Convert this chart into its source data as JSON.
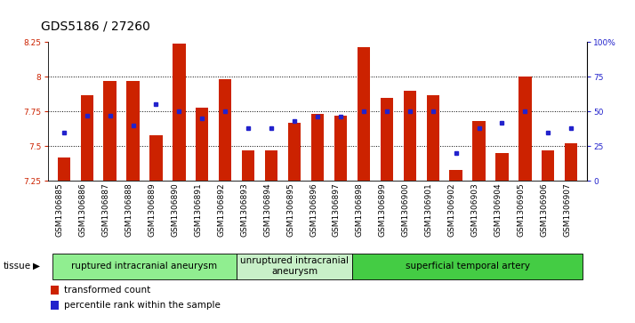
{
  "title": "GDS5186 / 27260",
  "samples": [
    "GSM1306885",
    "GSM1306886",
    "GSM1306887",
    "GSM1306888",
    "GSM1306889",
    "GSM1306890",
    "GSM1306891",
    "GSM1306892",
    "GSM1306893",
    "GSM1306894",
    "GSM1306895",
    "GSM1306896",
    "GSM1306897",
    "GSM1306898",
    "GSM1306899",
    "GSM1306900",
    "GSM1306901",
    "GSM1306902",
    "GSM1306903",
    "GSM1306904",
    "GSM1306905",
    "GSM1306906",
    "GSM1306907"
  ],
  "bar_values": [
    7.42,
    7.87,
    7.97,
    7.97,
    7.58,
    8.24,
    7.78,
    7.98,
    7.47,
    7.47,
    7.67,
    7.73,
    7.72,
    8.21,
    7.85,
    7.9,
    7.87,
    7.33,
    7.68,
    7.45,
    8.0,
    7.47,
    7.52
  ],
  "percentile_values": [
    35,
    47,
    47,
    40,
    55,
    50,
    45,
    50,
    38,
    38,
    43,
    46,
    46,
    50,
    50,
    50,
    50,
    20,
    38,
    42,
    50,
    35,
    38
  ],
  "groups": [
    {
      "label": "ruptured intracranial aneurysm",
      "start": 0,
      "end": 8,
      "color": "#90EE90"
    },
    {
      "label": "unruptured intracranial\naneurysm",
      "start": 8,
      "end": 13,
      "color": "#c8f0c8"
    },
    {
      "label": "superficial temporal artery",
      "start": 13,
      "end": 23,
      "color": "#44cc44"
    }
  ],
  "ylim_left": [
    7.25,
    8.25
  ],
  "ylim_right": [
    0,
    100
  ],
  "yticks_left": [
    7.25,
    7.5,
    7.75,
    8.0,
    8.25
  ],
  "ytick_labels_left": [
    "7.25",
    "7.5",
    "7.75",
    "8",
    "8.25"
  ],
  "yticks_right": [
    0,
    25,
    50,
    75,
    100
  ],
  "ytick_labels_right": [
    "0",
    "25",
    "50",
    "75",
    "100%"
  ],
  "grid_yticks": [
    7.5,
    7.75,
    8.0
  ],
  "bar_color": "#cc2200",
  "dot_color": "#2222cc",
  "bar_width": 0.55,
  "plot_bg": "#ffffff",
  "title_fontsize": 10,
  "tick_fontsize": 6.5,
  "legend_fontsize": 7.5,
  "group_fontsize": 7.5,
  "tissue_label": "tissue"
}
